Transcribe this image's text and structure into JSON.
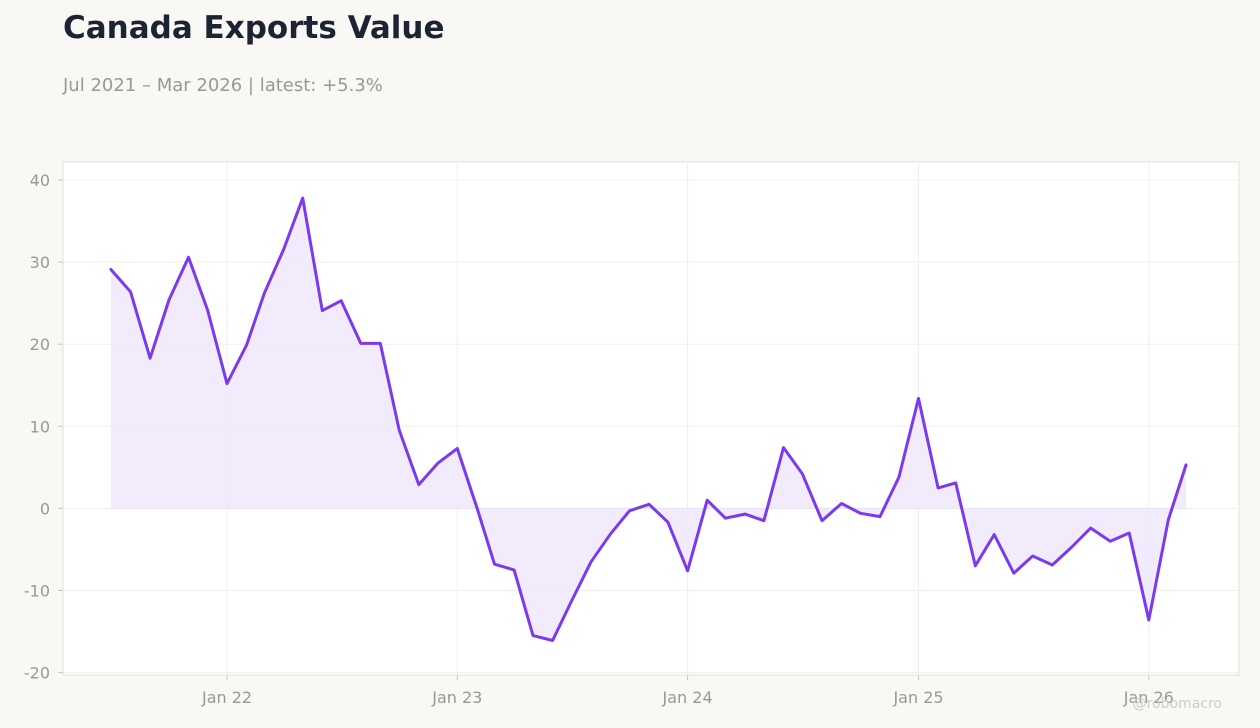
{
  "title": "Canada Exports Value",
  "subtitle": "Jul 2021 – Mar 2026 | latest: +5.3%",
  "watermark": "@robomacro",
  "colors": {
    "line": "#7c3aed",
    "fill": "#efe9fc",
    "background": "#f9f8f5",
    "plot_background": "#ffffff",
    "title": "#1c2333",
    "muted": "#999891"
  },
  "chart_data": {
    "type": "area",
    "title": "Canada Exports Value",
    "subtitle": "Jul 2021 – Mar 2026 | latest: +5.3%",
    "xlabel": "",
    "ylabel": "",
    "ylim": [
      -20.3,
      42.2
    ],
    "xlim": [
      "2021-04-16",
      "2026-05-24"
    ],
    "y_ticks": [
      -20,
      -10,
      0,
      10,
      20,
      30,
      40
    ],
    "x_ticks": [
      {
        "date": "2022-01-01",
        "label": "Jan 22"
      },
      {
        "date": "2023-01-01",
        "label": "Jan 23"
      },
      {
        "date": "2024-01-01",
        "label": "Jan 24"
      },
      {
        "date": "2025-01-01",
        "label": "Jan 25"
      },
      {
        "date": "2026-01-01",
        "label": "Jan 26"
      }
    ],
    "grid": true,
    "legend": "none",
    "x": [
      "2021-07",
      "2021-08",
      "2021-09",
      "2021-10",
      "2021-11",
      "2021-12",
      "2022-01",
      "2022-02",
      "2022-03",
      "2022-04",
      "2022-05",
      "2022-06",
      "2022-07",
      "2022-08",
      "2022-09",
      "2022-10",
      "2022-11",
      "2022-12",
      "2023-01",
      "2023-02",
      "2023-03",
      "2023-04",
      "2023-05",
      "2023-06",
      "2023-07",
      "2023-08",
      "2023-09",
      "2023-10",
      "2023-11",
      "2023-12",
      "2024-01",
      "2024-02",
      "2024-03",
      "2024-04",
      "2024-05",
      "2024-06",
      "2024-07",
      "2024-08",
      "2024-09",
      "2024-10",
      "2024-11",
      "2024-12",
      "2025-01",
      "2025-02",
      "2025-03",
      "2025-04",
      "2025-05",
      "2025-06",
      "2025-07",
      "2025-08",
      "2025-09",
      "2025-10",
      "2025-11",
      "2025-12",
      "2026-01",
      "2026-02",
      "2026-03"
    ],
    "values": [
      29.1,
      26.4,
      18.3,
      25.4,
      30.6,
      24.2,
      15.2,
      19.9,
      26.2,
      31.6,
      37.8,
      24.1,
      25.3,
      20.1,
      20.1,
      9.5,
      2.9,
      5.5,
      7.3,
      0.1,
      -6.8,
      -7.5,
      -15.5,
      -16.1,
      -11.3,
      -6.5,
      -3.1,
      -0.3,
      0.5,
      -1.7,
      -7.6,
      1.0,
      -1.2,
      -0.7,
      -1.5,
      7.4,
      4.2,
      -1.5,
      0.6,
      -0.6,
      -1.0,
      3.8,
      13.4,
      2.5,
      3.1,
      -7.0,
      -3.2,
      -7.9,
      -5.8,
      -6.9,
      -4.7,
      -2.4,
      -4.0,
      -3.0,
      -13.6,
      -1.4,
      5.3
    ]
  }
}
